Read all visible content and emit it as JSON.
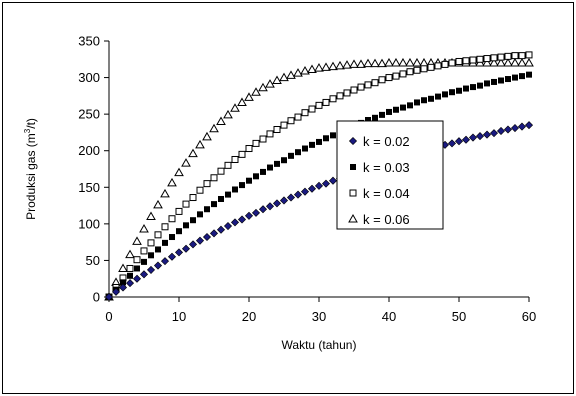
{
  "chart_data": {
    "type": "scatter",
    "xlabel": "Waktu (tahun)",
    "ylabel": "Produksi gas (m",
    "ylabel_sup": "3",
    "ylabel_suffix": "/t)",
    "xlim": [
      0,
      60
    ],
    "ylim": [
      0,
      350
    ],
    "xticks": [
      "0",
      "10",
      "20",
      "30",
      "40",
      "50",
      "60"
    ],
    "yticks": [
      "0",
      "50",
      "100",
      "150",
      "200",
      "250",
      "300",
      "350"
    ],
    "grid": false,
    "legend_position": "right",
    "x": [
      0,
      1,
      2,
      3,
      4,
      5,
      6,
      7,
      8,
      9,
      10,
      11,
      12,
      13,
      14,
      15,
      16,
      17,
      18,
      19,
      20,
      21,
      22,
      23,
      24,
      25,
      26,
      27,
      28,
      29,
      30,
      31,
      32,
      33,
      34,
      35,
      36,
      37,
      38,
      39,
      40,
      41,
      42,
      43,
      44,
      45,
      46,
      47,
      48,
      49,
      50,
      51,
      52,
      53,
      54,
      55,
      56,
      57,
      58,
      59,
      60
    ],
    "series": [
      {
        "name": "k = 0.02",
        "marker": "diamond",
        "color": "#1a1a80",
        "values": [
          0,
          7,
          13,
          19,
          25,
          31,
          37,
          43,
          49,
          55,
          61,
          66,
          72,
          77,
          82,
          87,
          92,
          97,
          102,
          106,
          111,
          115,
          120,
          124,
          128,
          132,
          136,
          140,
          144,
          148,
          152,
          155,
          159,
          162,
          166,
          169,
          172,
          176,
          179,
          182,
          185,
          188,
          191,
          194,
          197,
          200,
          202,
          205,
          208,
          210,
          213,
          215,
          218,
          220,
          222,
          224,
          227,
          229,
          231,
          233,
          235
        ]
      },
      {
        "name": "k = 0.03",
        "marker": "square",
        "color": "#000000",
        "values": [
          0,
          10,
          20,
          29,
          39,
          48,
          57,
          65,
          74,
          82,
          90,
          98,
          105,
          113,
          120,
          127,
          134,
          140,
          147,
          153,
          159,
          165,
          171,
          177,
          182,
          187,
          193,
          198,
          203,
          208,
          212,
          217,
          221,
          226,
          230,
          234,
          238,
          242,
          245,
          249,
          253,
          256,
          259,
          262,
          266,
          269,
          271,
          274,
          277,
          280,
          282,
          285,
          287,
          289,
          292,
          294,
          296,
          298,
          300,
          302,
          304
        ]
      },
      {
        "name": "k = 0.04",
        "marker": "square-open",
        "color": "#000000",
        "values": [
          0,
          13,
          26,
          39,
          51,
          63,
          74,
          85,
          96,
          107,
          117,
          127,
          136,
          146,
          155,
          163,
          172,
          180,
          188,
          195,
          203,
          210,
          216,
          223,
          229,
          235,
          241,
          246,
          252,
          257,
          262,
          266,
          271,
          275,
          279,
          283,
          287,
          290,
          293,
          297,
          300,
          302,
          305,
          308,
          310,
          312,
          314,
          316,
          318,
          320,
          322,
          323,
          324,
          325,
          326,
          327,
          328,
          329,
          330,
          330,
          331
        ]
      },
      {
        "name": "k = 0.06",
        "marker": "triangle-open",
        "color": "#000000",
        "values": [
          0,
          20,
          39,
          58,
          76,
          93,
          110,
          126,
          141,
          156,
          170,
          183,
          196,
          208,
          219,
          230,
          240,
          249,
          258,
          266,
          273,
          280,
          286,
          291,
          296,
          300,
          303,
          306,
          309,
          311,
          313,
          314,
          315,
          316,
          317,
          318,
          318,
          319,
          319,
          319,
          320,
          320,
          320,
          320,
          320,
          320,
          320,
          320,
          320,
          320,
          320,
          320,
          320,
          320,
          320,
          320,
          320,
          320,
          320,
          320,
          320
        ]
      }
    ]
  }
}
